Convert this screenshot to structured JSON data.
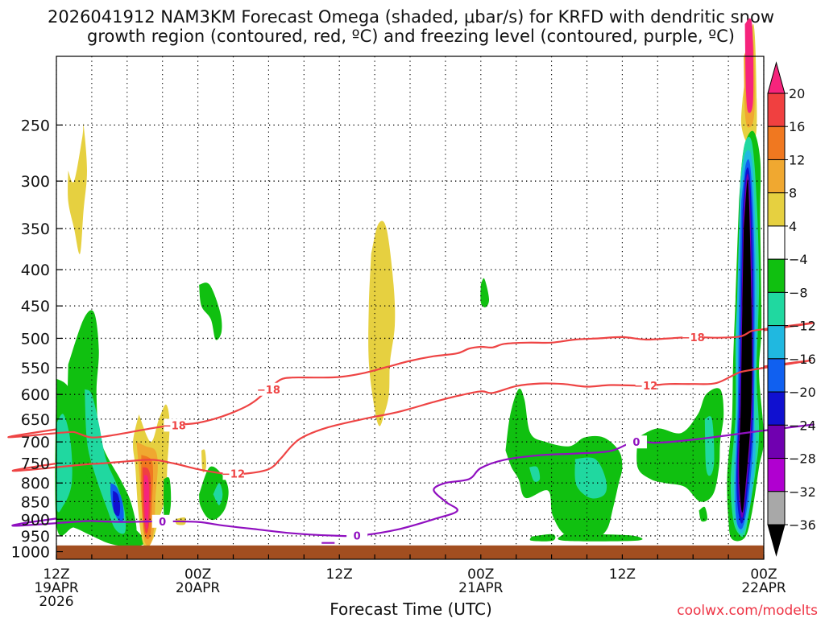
{
  "chart_data": {
    "type": "heatmap",
    "title_line1": "2026041912 NAM3KM Forecast Omega (shaded, μbar/s) for KRFD with dendritic snow",
    "title_line2": "growth region (contoured, red, ºC) and freezing level (contoured, purple, ºC)",
    "xlabel": "Forecast Time (UTC)",
    "ylabel": "",
    "credit": "coolwx.com/modelts",
    "x_range_hours": [
      0,
      60
    ],
    "y_range_mb": [
      200,
      1025
    ],
    "y_scale": "log-pressure",
    "grid": true,
    "y_ticks": [
      250,
      300,
      350,
      400,
      450,
      500,
      550,
      600,
      650,
      700,
      750,
      800,
      850,
      900,
      950,
      1000
    ],
    "x_ticks": [
      {
        "hour": 0,
        "lines": [
          "12Z",
          "19APR",
          "2026"
        ]
      },
      {
        "hour": 12,
        "lines": [
          "00Z",
          "20APR"
        ]
      },
      {
        "hour": 24,
        "lines": [
          "12Z"
        ]
      },
      {
        "hour": 36,
        "lines": [
          "00Z",
          "21APR"
        ]
      },
      {
        "hour": 48,
        "lines": [
          "12Z"
        ]
      },
      {
        "hour": 60,
        "lines": [
          "00Z",
          "22APR"
        ]
      }
    ],
    "colorbar": {
      "labels": [
        "20",
        "16",
        "12",
        "8",
        "4",
        "−4",
        "−8",
        "−12",
        "−16",
        "−20",
        "−24",
        "−28",
        "−32",
        "−36"
      ],
      "colors": [
        "#f6247c",
        "#f04040",
        "#f07820",
        "#f0a830",
        "#e6d040",
        "#ffffff",
        "#10c010",
        "#20d8a0",
        "#20b8e0",
        "#1060f0",
        "#1010d0",
        "#7000b0",
        "#b000d0",
        "#a8a8a8",
        "#000000"
      ]
    },
    "contours": [
      {
        "name": "-18",
        "color": "#ee4444",
        "label": "−18",
        "points": [
          [
            0,
            672
          ],
          [
            1.5,
            678
          ],
          [
            3,
            690
          ],
          [
            5,
            684
          ],
          [
            8,
            670
          ],
          [
            10,
            663
          ],
          [
            12,
            658
          ],
          [
            14,
            645
          ],
          [
            16,
            625
          ],
          [
            17,
            610
          ],
          [
            18,
            590
          ],
          [
            19,
            572
          ],
          [
            20,
            568
          ],
          [
            22,
            568
          ],
          [
            24,
            567
          ],
          [
            26,
            560
          ],
          [
            28,
            549
          ],
          [
            30,
            538
          ],
          [
            32,
            530
          ],
          [
            34,
            525
          ],
          [
            35,
            517
          ],
          [
            36,
            514
          ],
          [
            37,
            515
          ],
          [
            38,
            509
          ],
          [
            40,
            507
          ],
          [
            42,
            507
          ],
          [
            44,
            502
          ],
          [
            46,
            500
          ],
          [
            48,
            498
          ],
          [
            50,
            502
          ],
          [
            52,
            500
          ],
          [
            54,
            498
          ],
          [
            56,
            499
          ],
          [
            58,
            497
          ],
          [
            59,
            488
          ],
          [
            60,
            487
          ]
        ],
        "label_at": [
          10,
          18,
          54
        ]
      },
      {
        "name": "-12",
        "color": "#ee4444",
        "label": "−12",
        "points": [
          [
            0,
            751
          ],
          [
            3,
            752
          ],
          [
            5,
            748
          ],
          [
            8,
            742
          ],
          [
            10,
            751
          ],
          [
            12,
            765
          ],
          [
            14,
            775
          ],
          [
            16,
            776
          ],
          [
            18,
            765
          ],
          [
            19,
            740
          ],
          [
            20,
            708
          ],
          [
            21,
            688
          ],
          [
            23,
            668
          ],
          [
            26,
            650
          ],
          [
            29,
            635
          ],
          [
            32,
            615
          ],
          [
            34,
            603
          ],
          [
            36,
            594
          ],
          [
            37,
            597
          ],
          [
            39,
            584
          ],
          [
            41,
            579
          ],
          [
            43,
            580
          ],
          [
            45,
            585
          ],
          [
            47,
            582
          ],
          [
            50,
            583
          ],
          [
            52,
            580
          ],
          [
            54,
            580
          ],
          [
            56,
            578
          ],
          [
            58,
            558
          ],
          [
            60,
            548
          ]
        ],
        "label_at": [
          15,
          50
        ]
      },
      {
        "name": "0",
        "color": "#9010c0",
        "label": "0",
        "points": [
          [
            0,
            898
          ],
          [
            3,
            905
          ],
          [
            6,
            908
          ],
          [
            9,
            906
          ],
          [
            12,
            908
          ],
          [
            14,
            918
          ],
          [
            17,
            930
          ],
          [
            20,
            942
          ],
          [
            24,
            950
          ],
          [
            26,
            948
          ],
          [
            29,
            930
          ],
          [
            32,
            900
          ],
          [
            34,
            876
          ],
          [
            33,
            850
          ],
          [
            32,
            818
          ],
          [
            33,
            800
          ],
          [
            35,
            790
          ],
          [
            36,
            762
          ],
          [
            38,
            742
          ],
          [
            41,
            731
          ],
          [
            44,
            727
          ],
          [
            47,
            721
          ],
          [
            49,
            700
          ],
          [
            51,
            702
          ],
          [
            54,
            695
          ],
          [
            57,
            685
          ],
          [
            59,
            678
          ],
          [
            60,
            675
          ]
        ],
        "label_at": [
          25.5,
          9,
          49.2
        ]
      }
    ],
    "ground_level_mb": 980
  }
}
